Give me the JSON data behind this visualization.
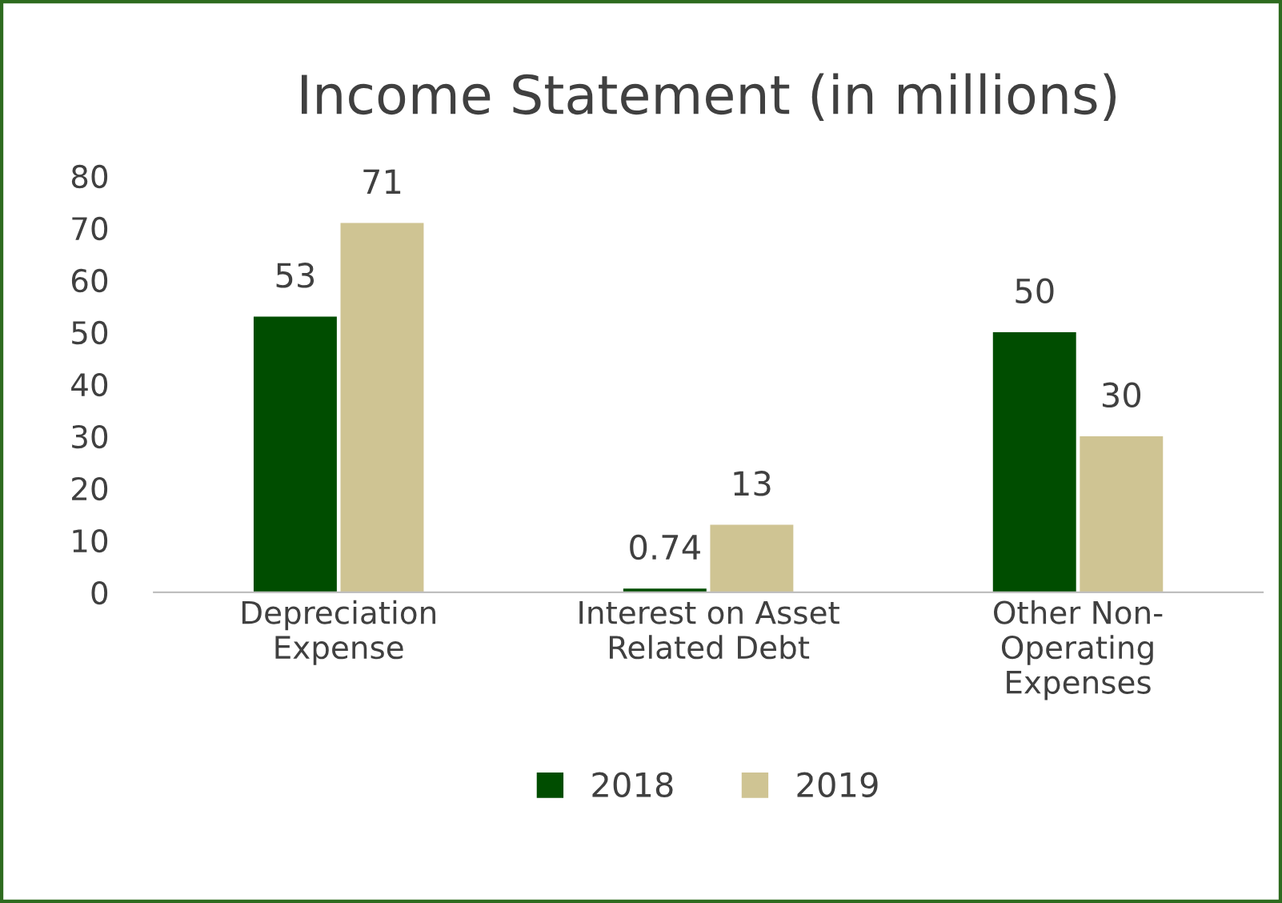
{
  "chart_data": {
    "type": "bar",
    "title": "Income Statement (in millions)",
    "categories": [
      "Depreciation\nExpense",
      "Interest on Asset\nRelated Debt",
      "Other Non-\nOperating\nExpenses"
    ],
    "series": [
      {
        "name": "2018",
        "color": "#004d00",
        "values": [
          53,
          0.74,
          50
        ]
      },
      {
        "name": "2019",
        "color": "#cfc493",
        "values": [
          71,
          13,
          30
        ]
      }
    ],
    "ylim": [
      0,
      80
    ],
    "yticks": [
      0,
      10,
      20,
      30,
      40,
      50,
      60,
      70,
      80
    ],
    "grid": false,
    "legend": "bottom",
    "data_labels": true
  }
}
